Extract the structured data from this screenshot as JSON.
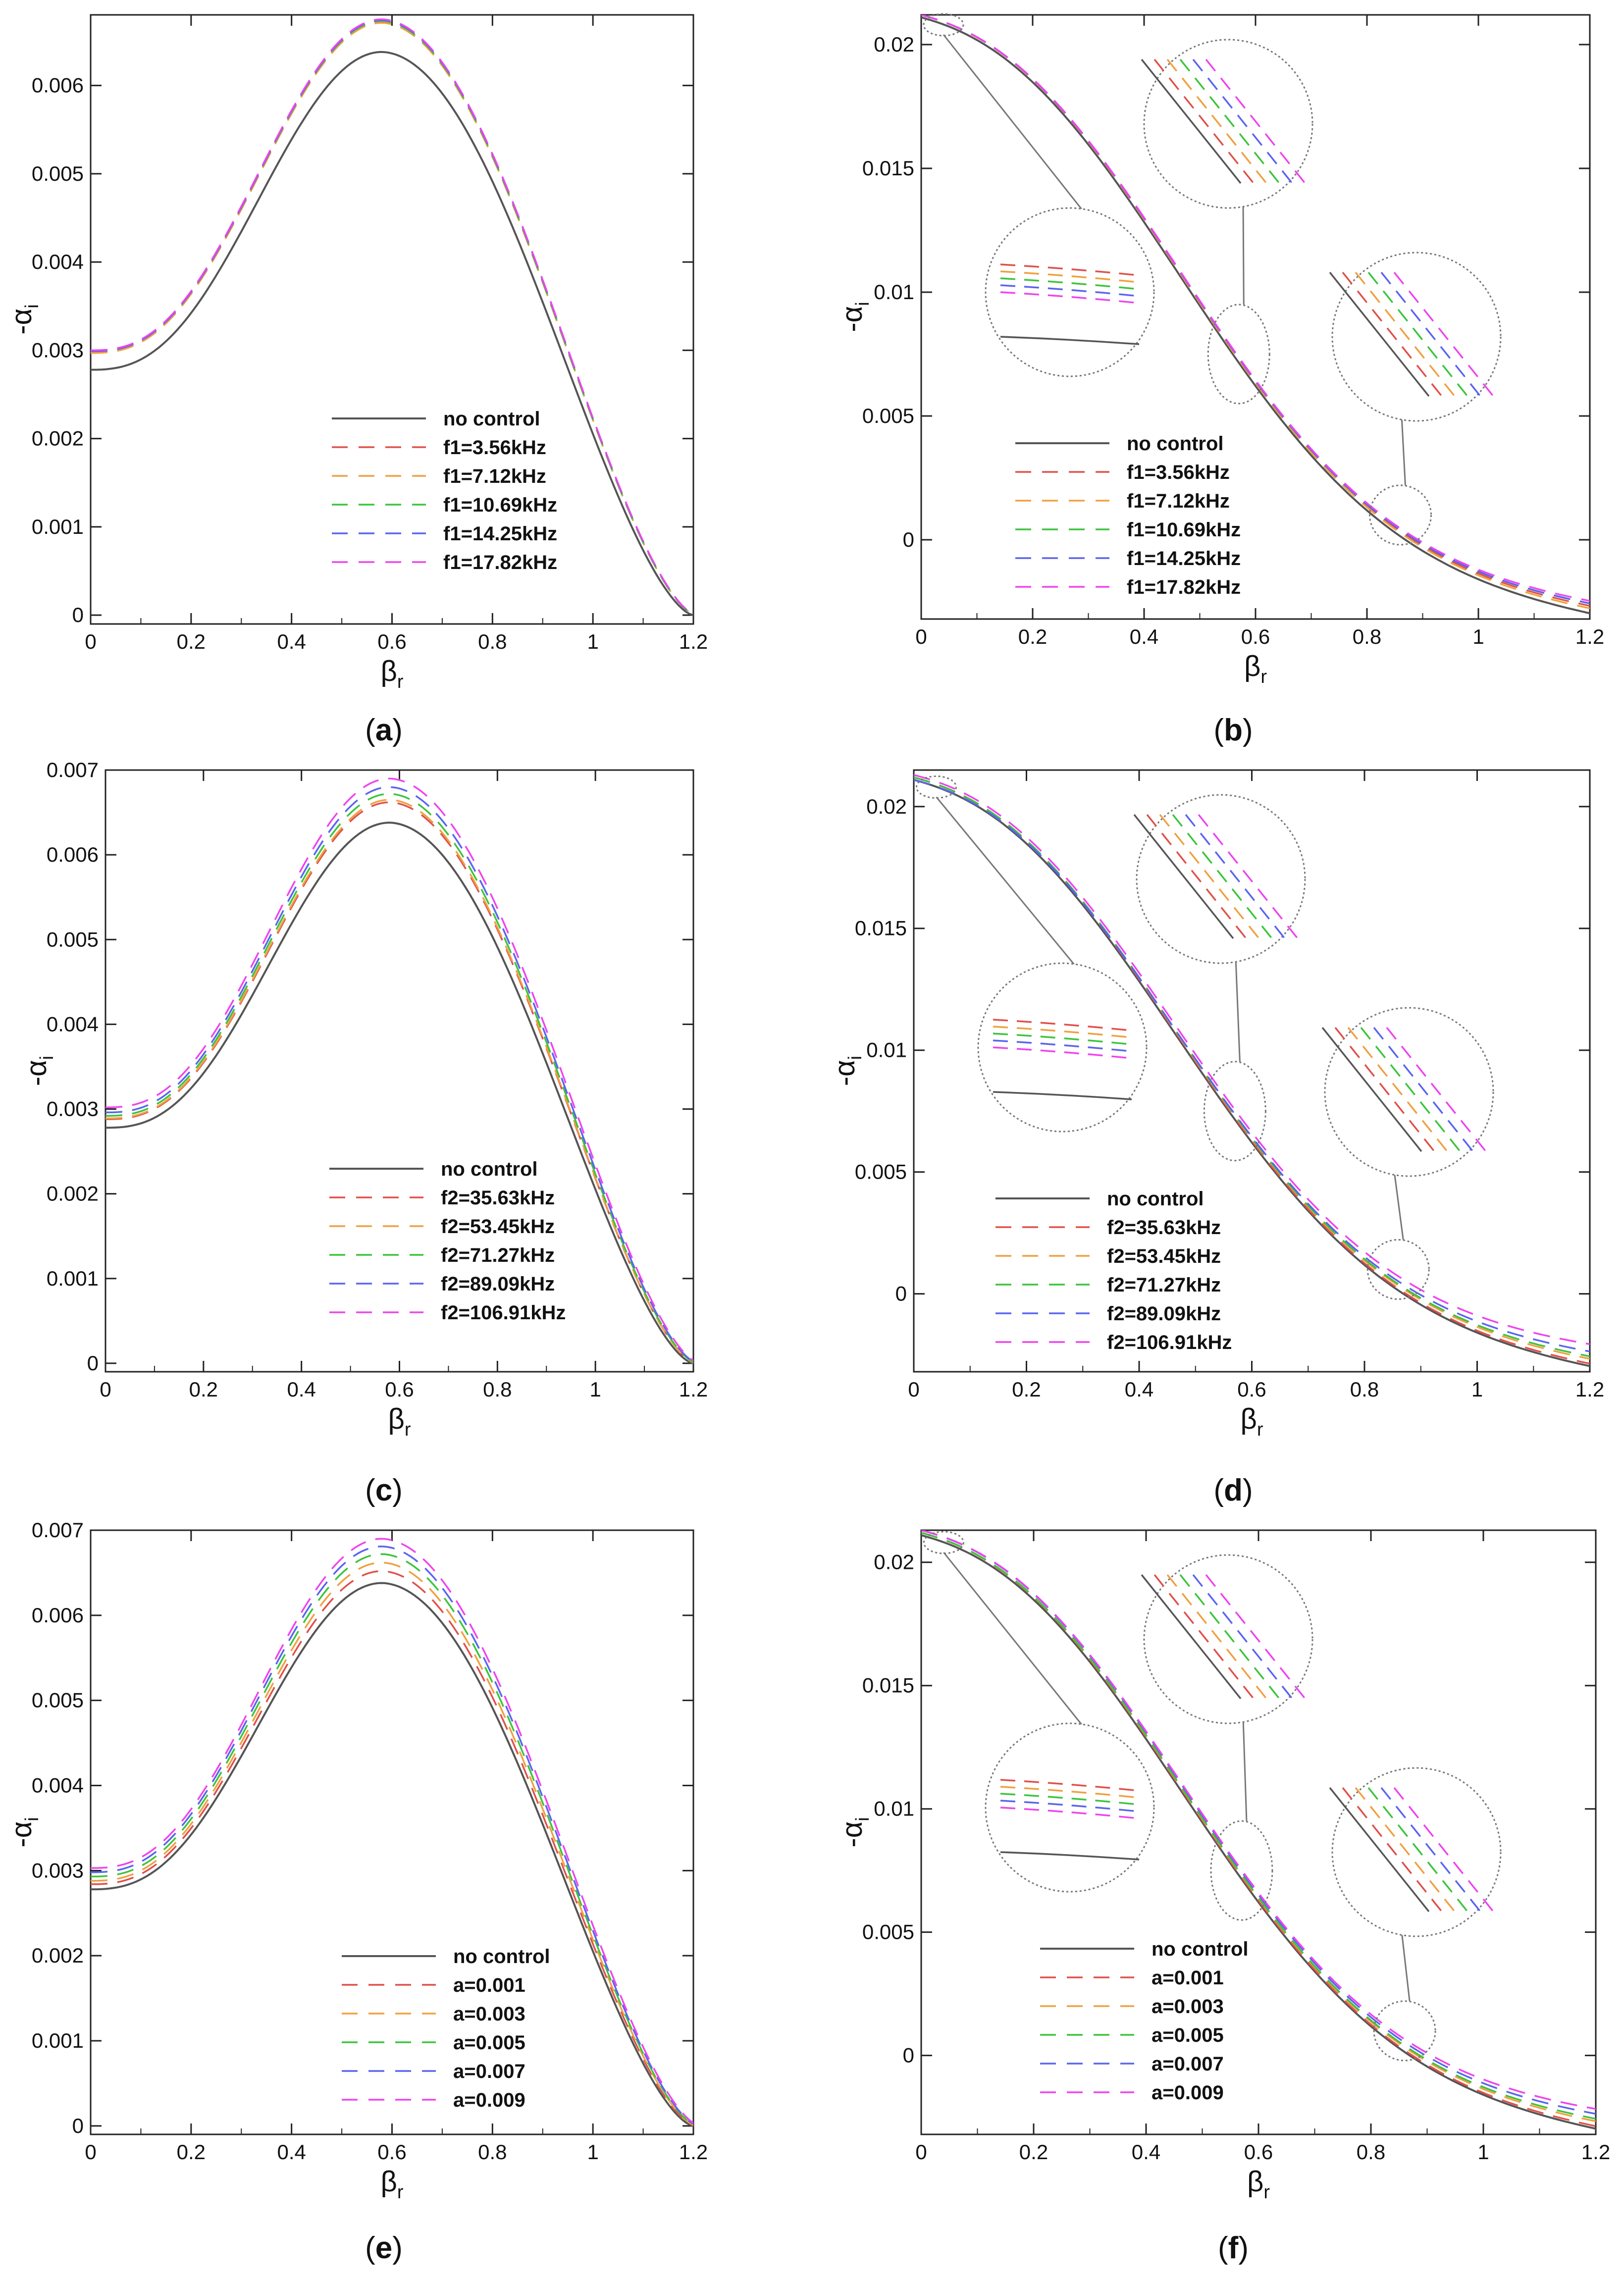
{
  "figure": {
    "colors": {
      "baseline": "#555555",
      "series": [
        "#e0504a",
        "#f0a040",
        "#3cc43c",
        "#5a64f0",
        "#ee44ee"
      ],
      "axis": "#222222",
      "zoom": "#777777"
    }
  },
  "chart_data": [
    {
      "id": "a",
      "panel_label": "(a)",
      "type": "line",
      "xlabel": "βr",
      "ylabel": "-αi",
      "xlim": [
        0,
        1.2
      ],
      "ylim": [
        -0.0001,
        0.0068
      ],
      "xticks": [
        "0",
        "0.2",
        "0.4",
        "0.6",
        "0.8",
        "1",
        "1.2"
      ],
      "yticks": [
        "0",
        "0.001",
        "0.002",
        "0.003",
        "0.004",
        "0.005",
        "0.006"
      ],
      "shape": "hump",
      "base": {
        "y0": 0.00278,
        "ypeak": 0.00638,
        "xpeak": 0.58,
        "xzero": 1.2
      },
      "series": [
        {
          "name": "no control",
          "y0": 0.00278,
          "ypeak": 0.00638,
          "xzero": 1.2
        },
        {
          "name": "f1=3.56kHz",
          "y0": 0.00298,
          "ypeak": 0.00672,
          "xzero": 1.205
        },
        {
          "name": "f1=7.12kHz",
          "y0": 0.00297,
          "ypeak": 0.00671,
          "xzero": 1.205
        },
        {
          "name": "f1=10.69kHz",
          "y0": 0.00299,
          "ypeak": 0.00673,
          "xzero": 1.205
        },
        {
          "name": "f1=14.25kHz",
          "y0": 0.00299,
          "ypeak": 0.00674,
          "xzero": 1.206
        },
        {
          "name": "f1=17.82kHz",
          "y0": 0.003,
          "ypeak": 0.00675,
          "xzero": 1.206
        }
      ]
    },
    {
      "id": "b",
      "panel_label": "(b)",
      "type": "line",
      "xlabel": "βr",
      "ylabel": "-αi",
      "xlim": [
        0,
        1.2
      ],
      "ylim": [
        -0.0032,
        0.0212
      ],
      "xticks": [
        "0",
        "0.2",
        "0.4",
        "0.6",
        "0.8",
        "1",
        "1.2"
      ],
      "yticks": [
        "0",
        "0.005",
        "0.01",
        "0.015",
        "0.02"
      ],
      "shape": "decay",
      "base": {
        "y0": 0.0211,
        "y1": -0.0031
      },
      "series": [
        {
          "name": "no control",
          "y0": 0.0211,
          "y1": -0.0031
        },
        {
          "name": "f1=3.56kHz",
          "y0": 0.0212,
          "y1": -0.0028
        },
        {
          "name": "f1=7.12kHz",
          "y0": 0.0212,
          "y1": -0.0029
        },
        {
          "name": "f1=10.69kHz",
          "y0": 0.0212,
          "y1": -0.0027
        },
        {
          "name": "f1=14.25kHz",
          "y0": 0.0212,
          "y1": -0.0027
        },
        {
          "name": "f1=17.82kHz",
          "y0": 0.0212,
          "y1": -0.0026
        }
      ]
    },
    {
      "id": "c",
      "panel_label": "(c)",
      "type": "line",
      "xlabel": "βr",
      "ylabel": "-αi",
      "xlim": [
        0,
        1.2
      ],
      "ylim": [
        -0.0001,
        0.007
      ],
      "xticks": [
        "0",
        "0.2",
        "0.4",
        "0.6",
        "0.8",
        "1",
        "1.2"
      ],
      "yticks": [
        "0",
        "0.001",
        "0.002",
        "0.003",
        "0.004",
        "0.005",
        "0.006",
        "0.007"
      ],
      "shape": "hump",
      "base": {
        "y0": 0.00278,
        "ypeak": 0.00638,
        "xpeak": 0.58,
        "xzero": 1.2
      },
      "series": [
        {
          "name": "no control",
          "y0": 0.00278,
          "ypeak": 0.00638,
          "xzero": 1.2
        },
        {
          "name": "f2=35.63kHz",
          "y0": 0.00288,
          "ypeak": 0.00662,
          "xzero": 1.205
        },
        {
          "name": "f2=53.45kHz",
          "y0": 0.00289,
          "ypeak": 0.00665,
          "xzero": 1.205
        },
        {
          "name": "f2=71.27kHz",
          "y0": 0.00292,
          "ypeak": 0.00672,
          "xzero": 1.207
        },
        {
          "name": "f2=89.09kHz",
          "y0": 0.00296,
          "ypeak": 0.0068,
          "xzero": 1.209
        },
        {
          "name": "f2=106.91kHz",
          "y0": 0.00302,
          "ypeak": 0.0069,
          "xzero": 1.212
        }
      ]
    },
    {
      "id": "d",
      "panel_label": "(d)",
      "type": "line",
      "xlabel": "βr",
      "ylabel": "-αi",
      "xlim": [
        0,
        1.2
      ],
      "ylim": [
        -0.0032,
        0.0215
      ],
      "xticks": [
        "0",
        "0.2",
        "0.4",
        "0.6",
        "0.8",
        "1",
        "1.2"
      ],
      "yticks": [
        "0",
        "0.005",
        "0.01",
        "0.015",
        "0.02"
      ],
      "shape": "decay",
      "base": {
        "y0": 0.0211,
        "y1": -0.0031
      },
      "series": [
        {
          "name": "no control",
          "y0": 0.0211,
          "y1": -0.0031
        },
        {
          "name": "f2=35.63kHz",
          "y0": 0.0212,
          "y1": -0.003
        },
        {
          "name": "f2=53.45kHz",
          "y0": 0.0212,
          "y1": -0.0028
        },
        {
          "name": "f2=71.27kHz",
          "y0": 0.0212,
          "y1": -0.0027
        },
        {
          "name": "f2=89.09kHz",
          "y0": 0.0211,
          "y1": -0.0025
        },
        {
          "name": "f2=106.91kHz",
          "y0": 0.0213,
          "y1": -0.0022
        }
      ]
    },
    {
      "id": "e",
      "panel_label": "(e)",
      "type": "line",
      "xlabel": "βr",
      "ylabel": "-αi",
      "xlim": [
        0,
        1.2
      ],
      "ylim": [
        -0.0001,
        0.007
      ],
      "xticks": [
        "0",
        "0.2",
        "0.4",
        "0.6",
        "0.8",
        "1",
        "1.2"
      ],
      "yticks": [
        "0",
        "0.001",
        "0.002",
        "0.003",
        "0.004",
        "0.005",
        "0.006",
        "0.007"
      ],
      "shape": "hump",
      "base": {
        "y0": 0.00278,
        "ypeak": 0.00638,
        "xpeak": 0.58,
        "xzero": 1.2
      },
      "series": [
        {
          "name": "no control",
          "y0": 0.00278,
          "ypeak": 0.00638,
          "xzero": 1.2
        },
        {
          "name": "a=0.001",
          "y0": 0.00284,
          "ypeak": 0.00652,
          "xzero": 1.204
        },
        {
          "name": "a=0.003",
          "y0": 0.00288,
          "ypeak": 0.00662,
          "xzero": 1.206
        },
        {
          "name": "a=0.005",
          "y0": 0.00293,
          "ypeak": 0.00672,
          "xzero": 1.208
        },
        {
          "name": "a=0.007",
          "y0": 0.00298,
          "ypeak": 0.00681,
          "xzero": 1.21
        },
        {
          "name": "a=0.009",
          "y0": 0.00303,
          "ypeak": 0.0069,
          "xzero": 1.213
        }
      ]
    },
    {
      "id": "f",
      "panel_label": "(f)",
      "type": "line",
      "xlabel": "βr",
      "ylabel": "-αi",
      "xlim": [
        0,
        1.2
      ],
      "ylim": [
        -0.0032,
        0.0213
      ],
      "xticks": [
        "0",
        "0.2",
        "0.4",
        "0.6",
        "0.8",
        "1",
        "1.2"
      ],
      "yticks": [
        "0",
        "0.005",
        "0.01",
        "0.015",
        "0.02"
      ],
      "shape": "decay",
      "base": {
        "y0": 0.0211,
        "y1": -0.0031
      },
      "series": [
        {
          "name": "no control",
          "y0": 0.0211,
          "y1": -0.0031
        },
        {
          "name": "a=0.001",
          "y0": 0.0212,
          "y1": -0.003
        },
        {
          "name": "a=0.003",
          "y0": 0.0212,
          "y1": -0.0028
        },
        {
          "name": "a=0.005",
          "y0": 0.0212,
          "y1": -0.0027
        },
        {
          "name": "a=0.007",
          "y0": 0.0213,
          "y1": -0.0025
        },
        {
          "name": "a=0.009",
          "y0": 0.0213,
          "y1": -0.0023
        }
      ]
    }
  ]
}
